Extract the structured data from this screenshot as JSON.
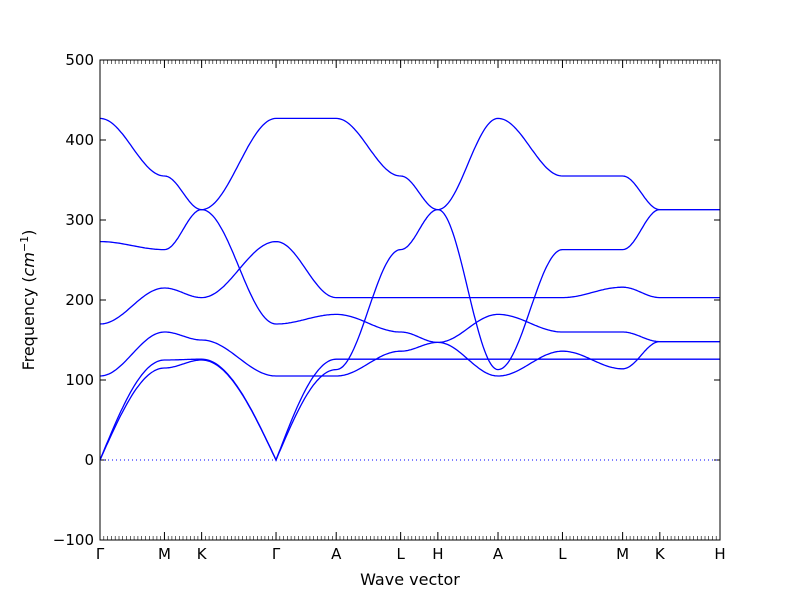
{
  "chart_data": {
    "type": "line",
    "title": "",
    "xlabel": "Wave vector",
    "ylabel": "Frequency (cm⁻¹)",
    "ylabel_text": "Frequency (",
    "ylabel_unit_base": "cm",
    "ylabel_unit_exp": "−1",
    "ylabel_close": ")",
    "ylim": [
      -100,
      500
    ],
    "yticks": [
      -100,
      0,
      100,
      200,
      300,
      400,
      500
    ],
    "zero_line": "dotted",
    "grid": false,
    "line_color": "#0000ff",
    "kpoints": [
      {
        "label": "Γ",
        "x": 0
      },
      {
        "label": "M",
        "x": 0.575
      },
      {
        "label": "K",
        "x": 0.907
      },
      {
        "label": "Γ",
        "x": 1.571
      },
      {
        "label": "A",
        "x": 2.108
      },
      {
        "label": "L",
        "x": 2.683
      },
      {
        "label": "H",
        "x": 3.015
      },
      {
        "label": "A",
        "x": 3.552
      },
      {
        "label": "L",
        "x": 4.127
      },
      {
        "label": "M",
        "x": 4.664
      },
      {
        "label": "K",
        "x": 4.996
      },
      {
        "label": "H",
        "x": 5.533
      }
    ],
    "x_samples": [
      0,
      0.575,
      0.907,
      1.571,
      2.108,
      2.683,
      3.015,
      3.552,
      4.127,
      4.664,
      4.996,
      5.533
    ],
    "series": [
      {
        "values": [
          0,
          115,
          125,
          0,
          113,
          263,
          313,
          427,
          355,
          355,
          313,
          313
        ]
      },
      {
        "values": [
          0,
          125,
          126,
          0,
          126,
          126,
          126,
          126,
          126,
          126,
          126,
          126
        ]
      },
      {
        "values": [
          105,
          160,
          150,
          105,
          105,
          136,
          147,
          182,
          160,
          160,
          148,
          148
        ]
      },
      {
        "values": [
          170,
          215,
          203,
          273,
          203,
          203,
          203,
          203,
          203,
          216,
          203,
          203
        ]
      },
      {
        "values": [
          273,
          263,
          313,
          170,
          182,
          160,
          147,
          105,
          136,
          114,
          148,
          148
        ]
      },
      {
        "values": [
          427,
          355,
          313,
          427,
          427,
          355,
          313,
          113,
          263,
          263,
          313,
          313
        ]
      }
    ]
  }
}
